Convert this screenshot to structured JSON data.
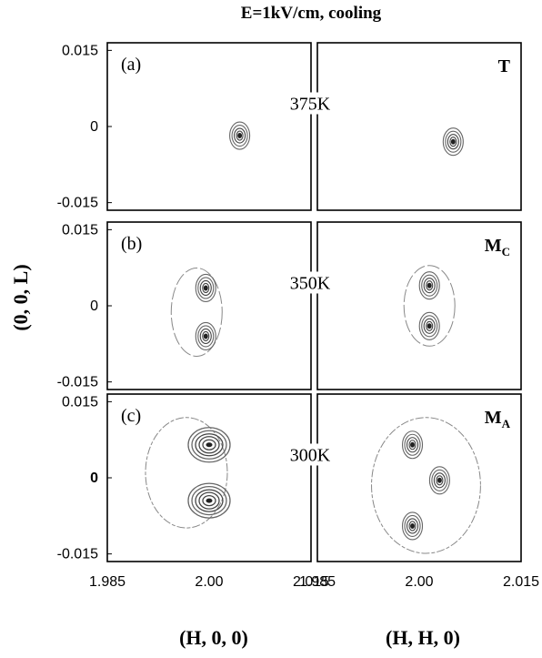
{
  "chart_data": {
    "type": "contour",
    "title": "E=1kV/cm, cooling",
    "ylabel": "(0, 0, L)",
    "ytick_labels": [
      "0.015",
      "0",
      "-0.015"
    ],
    "yticks": [
      0.015,
      0,
      -0.015
    ],
    "ylim": [
      -0.0165,
      0.0165
    ],
    "xlim": [
      1.985,
      2.015
    ],
    "columns": [
      {
        "xlabel": "(H, 0, 0)",
        "xticks": [
          1.985,
          2.0,
          2.015
        ],
        "xtick_labels": [
          "1.985",
          "2.00",
          "2.015"
        ]
      },
      {
        "xlabel": "(H, H, 0)",
        "xticks": [
          1.985,
          2.0,
          2.015
        ],
        "xtick_labels": [
          "1.985",
          "2.00",
          "2.015"
        ]
      }
    ],
    "rows": [
      {
        "panel_label": "(a)",
        "temperature": "375K",
        "phase": "T",
        "phase_sub": "",
        "left_peaks": [
          {
            "h": 2.0045,
            "l": -0.0018
          }
        ],
        "right_peaks": [
          {
            "h": 2.005,
            "l": -0.003
          }
        ]
      },
      {
        "panel_label": "(b)",
        "temperature": "350K",
        "phase": "M",
        "phase_sub": "C",
        "left_peaks": [
          {
            "h": 1.9995,
            "l": 0.0035
          },
          {
            "h": 1.9995,
            "l": -0.006
          }
        ],
        "right_peaks": [
          {
            "h": 2.0015,
            "l": 0.004
          },
          {
            "h": 2.0015,
            "l": -0.004
          }
        ]
      },
      {
        "panel_label": "(c)",
        "temperature": "300K",
        "phase": "M",
        "phase_sub": "A",
        "left_peaks": [
          {
            "h": 2.0,
            "l": 0.0065
          },
          {
            "h": 2.0,
            "l": -0.0045
          }
        ],
        "right_peaks": [
          {
            "h": 1.999,
            "l": 0.0065
          },
          {
            "h": 2.003,
            "l": -0.0005
          },
          {
            "h": 1.999,
            "l": -0.0095
          }
        ]
      }
    ]
  }
}
